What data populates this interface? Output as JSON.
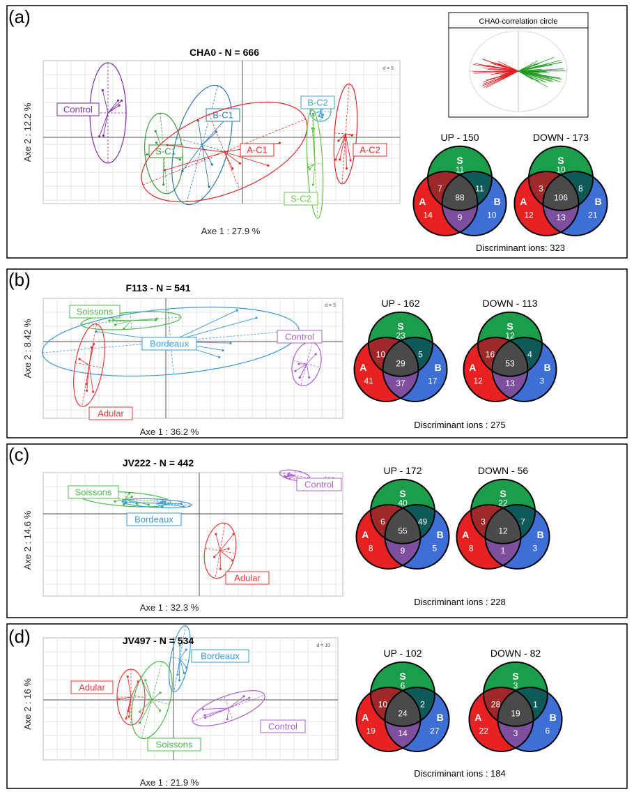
{
  "chart_data": [
    {
      "type": "scatter",
      "panel": "(a)",
      "title": "CHA0 - N = 666",
      "xlabel": "Axe 1 : 27.9 %",
      "ylabel": "Axe 2 : 12.2 %",
      "scale_label": "d = 5",
      "groups": [
        {
          "name": "Control",
          "color": "#7a2fa8"
        },
        {
          "name": "S-C1",
          "color": "#3b9a3b"
        },
        {
          "name": "B-C1",
          "color": "#2e78b8"
        },
        {
          "name": "A-C1",
          "color": "#e02828"
        },
        {
          "name": "B-C2",
          "color": "#3aa0d8"
        },
        {
          "name": "S-C2",
          "color": "#6cc24a"
        },
        {
          "name": "A-C2",
          "color": "#e02828"
        }
      ],
      "inset_title": "CHA0-correlation circle",
      "venn": {
        "up": {
          "title": "UP - 150",
          "S": "11",
          "A": "14",
          "B": "10",
          "AS": "7",
          "SB": "11",
          "AB": "9",
          "ASB": "88"
        },
        "down": {
          "title": "DOWN - 173",
          "S": "10",
          "A": "12",
          "B": "21",
          "AS": "3",
          "SB": "8",
          "AB": "13",
          "ASB": "106"
        },
        "discriminant": "Discriminant ions: 323"
      }
    },
    {
      "type": "scatter",
      "panel": "(b)",
      "title": "F113 - N = 541",
      "xlabel": "Axe 1 : 36.2 %",
      "ylabel": "Axe 2 : 8.42 %",
      "scale_label": "d = 5",
      "groups": [
        {
          "name": "Soissons",
          "color": "#4cb84c"
        },
        {
          "name": "Bordeaux",
          "color": "#3a98d8"
        },
        {
          "name": "Adular",
          "color": "#e83a3a"
        },
        {
          "name": "Control",
          "color": "#b060d0"
        }
      ],
      "venn": {
        "up": {
          "title": "UP - 162",
          "S": "23",
          "A": "41",
          "B": "17",
          "AS": "10",
          "SB": "5",
          "AB": "37",
          "ASB": "29"
        },
        "down": {
          "title": "DOWN - 113",
          "S": "12",
          "A": "12",
          "B": "3",
          "AS": "16",
          "SB": "4",
          "AB": "13",
          "ASB": "53"
        },
        "discriminant": "Discriminant ions : 275"
      }
    },
    {
      "type": "scatter",
      "panel": "(c)",
      "title": "JV222 - N = 442",
      "xlabel": "Axe 1 : 32.3 %",
      "ylabel": "Axe 2 : 14.6 %",
      "scale_label": "d = 5",
      "groups": [
        {
          "name": "Soissons",
          "color": "#4cb84c"
        },
        {
          "name": "Bordeaux",
          "color": "#3a98d8"
        },
        {
          "name": "Control",
          "color": "#b060d0"
        },
        {
          "name": "Adular",
          "color": "#e83a3a"
        }
      ],
      "venn": {
        "up": {
          "title": "UP - 172",
          "S": "40",
          "A": "8",
          "B": "5",
          "AS": "6",
          "SB": "49",
          "AB": "9",
          "ASB": "55"
        },
        "down": {
          "title": "DOWN - 56",
          "S": "22",
          "A": "8",
          "B": "3",
          "AS": "3",
          "SB": "7",
          "AB": "1",
          "ASB": "12"
        },
        "discriminant": "Discriminant ions : 228"
      }
    },
    {
      "type": "scatter",
      "panel": "(d)",
      "title": "JV497 - N = 534",
      "xlabel": "Axe 1 : 21.9 %",
      "ylabel": "Axe 2 : 16 %",
      "scale_label": "d = 10",
      "groups": [
        {
          "name": "Bordeaux",
          "color": "#3a98d8"
        },
        {
          "name": "Adular",
          "color": "#e83a3a"
        },
        {
          "name": "Soissons",
          "color": "#4cb84c"
        },
        {
          "name": "Control",
          "color": "#b060d0"
        }
      ],
      "venn": {
        "up": {
          "title": "UP - 102",
          "S": "6",
          "A": "19",
          "B": "27",
          "AS": "10",
          "SB": "2",
          "AB": "14",
          "ASB": "24"
        },
        "down": {
          "title": "DOWN - 82",
          "S": "3",
          "A": "22",
          "B": "6",
          "AS": "28",
          "SB": "1",
          "AB": "3",
          "ASB": "19"
        },
        "discriminant": "Discriminant ions : 184"
      }
    }
  ],
  "venn_letters": {
    "S": "S",
    "A": "A",
    "B": "B"
  },
  "venn_colors": {
    "S": "#1a9e4a",
    "A": "#e82222",
    "B": "#3e6fd6",
    "AS": "#a02828",
    "SB": "#0e5a5a",
    "AB": "#7e4f9e",
    "ASB": "#4a4a4a"
  }
}
